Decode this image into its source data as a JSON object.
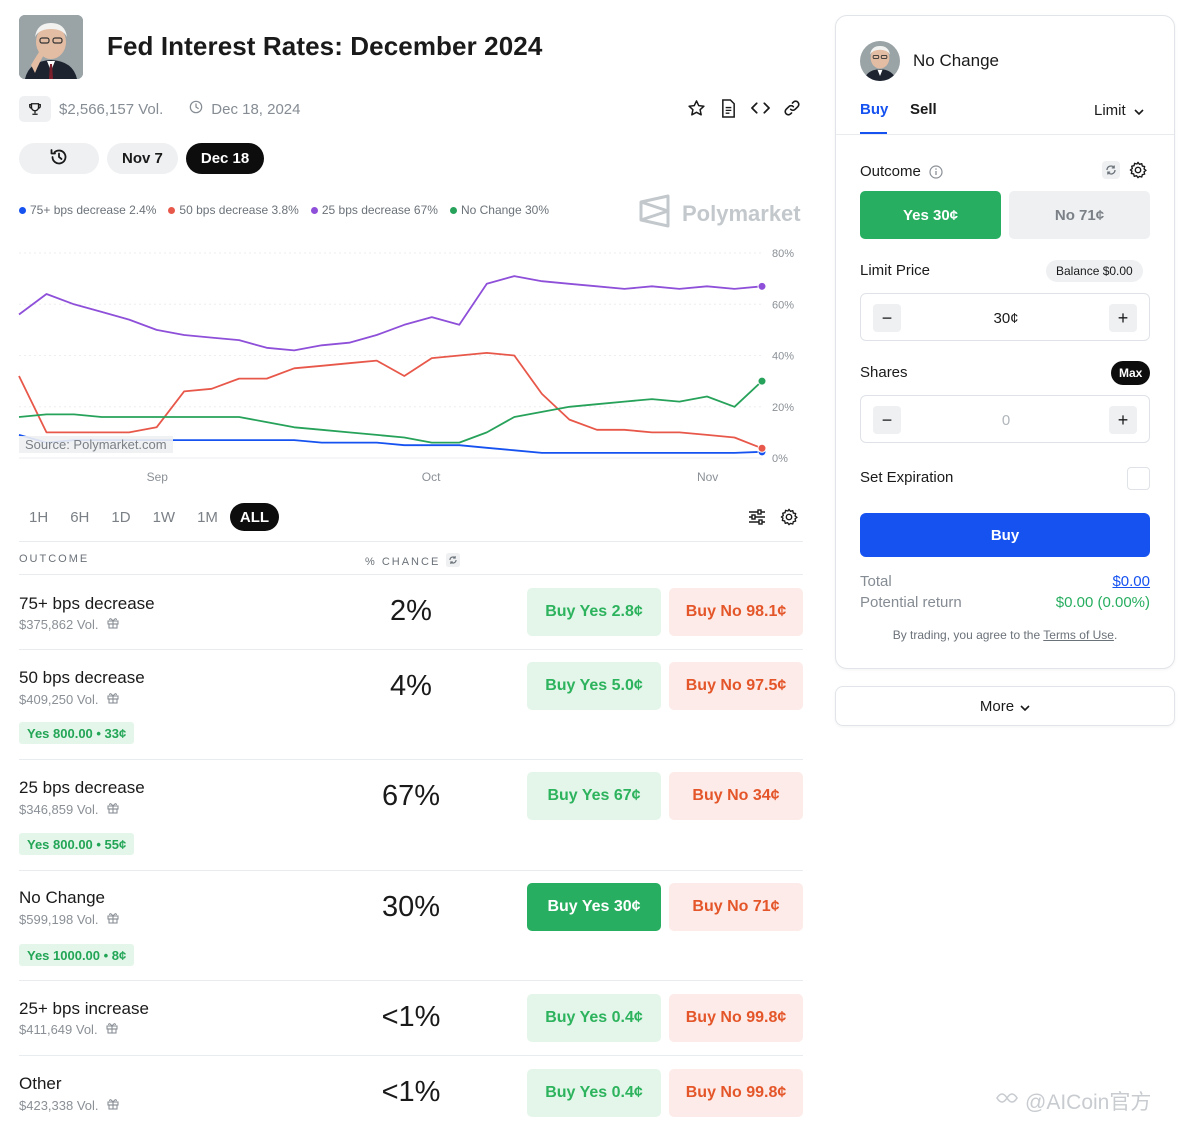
{
  "market": {
    "title": "Fed Interest Rates: December 2024",
    "volume": "$2,566,157 Vol.",
    "end_date": "Dec 18, 2024"
  },
  "icons": [
    "trophy-icon",
    "clock-icon",
    "star-icon",
    "document-icon",
    "code-icon",
    "link-icon",
    "history-icon",
    "sliders-icon",
    "gear-icon",
    "refresh-icon",
    "info-icon",
    "gift-icon",
    "chevron-down-icon",
    "polymarket-logo-icon"
  ],
  "date_pills": [
    "Nov 7",
    "Dec 18"
  ],
  "brand": "Polymarket",
  "chart_source": "Source: Polymarket.com",
  "time_ranges": [
    "1H",
    "6H",
    "1D",
    "1W",
    "1M",
    "ALL"
  ],
  "colors": {
    "blue": "#1652f0",
    "red": "#e8584a",
    "purple": "#8e4fd9",
    "green": "#27a25a"
  },
  "chart_data": {
    "type": "line",
    "title": "",
    "xlabel": "",
    "ylabel": "",
    "x_tick_labels": [
      "Sep",
      "Oct",
      "Nov"
    ],
    "y_tick_labels": [
      "80%",
      "60%",
      "40%",
      "20%",
      "0%"
    ],
    "ylim": [
      0,
      80
    ],
    "x": [
      "Aug 18",
      "Aug 21",
      "Aug 24",
      "Aug 27",
      "Aug 30",
      "Sep 2",
      "Sep 5",
      "Sep 8",
      "Sep 11",
      "Sep 14",
      "Sep 17",
      "Sep 20",
      "Sep 23",
      "Sep 26",
      "Sep 29",
      "Oct 2",
      "Oct 5",
      "Oct 8",
      "Oct 11",
      "Oct 14",
      "Oct 17",
      "Oct 20",
      "Oct 23",
      "Oct 26",
      "Oct 29",
      "Nov 1",
      "Nov 4",
      "Nov 7"
    ],
    "series": [
      {
        "name": "75+ bps decrease",
        "legend": "75+ bps decrease 2.4%",
        "color": "#1652f0",
        "values": [
          9,
          6,
          7,
          7,
          7,
          7,
          7,
          7,
          7,
          7,
          7,
          6,
          6,
          6,
          5,
          5,
          5,
          4,
          3,
          2,
          2,
          2,
          2,
          2,
          2,
          2,
          2,
          2.4
        ]
      },
      {
        "name": "50 bps decrease",
        "legend": "50 bps decrease 3.8%",
        "color": "#e8584a",
        "values": [
          32,
          10,
          10,
          10,
          10,
          12,
          26,
          27,
          31,
          31,
          35,
          36,
          37,
          38,
          32,
          39,
          40,
          41,
          40,
          25,
          15,
          11,
          11,
          10,
          10,
          9,
          8,
          3.8
        ]
      },
      {
        "name": "25 bps decrease",
        "legend": "25 bps decrease 67%",
        "color": "#8e4fd9",
        "values": [
          56,
          64,
          60,
          57,
          54,
          50,
          48,
          47,
          46,
          43,
          42,
          44,
          45,
          48,
          52,
          55,
          52,
          68,
          71,
          69,
          68,
          67,
          66,
          67,
          66,
          67,
          66,
          67
        ]
      },
      {
        "name": "No Change",
        "legend": "No Change 30%",
        "color": "#27a25a",
        "values": [
          16,
          17,
          17,
          16,
          16,
          16,
          16,
          16,
          16,
          14,
          12,
          11,
          10,
          9,
          8,
          6,
          6,
          10,
          16,
          18,
          20,
          21,
          22,
          23,
          22,
          24,
          20,
          30
        ]
      }
    ]
  },
  "table": {
    "header_outcome": "OUTCOME",
    "header_chance": "% CHANCE",
    "rows": [
      {
        "name": "75+ bps decrease",
        "volume": "$375,862 Vol.",
        "chance": "2%",
        "buy_yes": "Buy Yes 2.8¢",
        "buy_no": "Buy No 98.1¢"
      },
      {
        "name": "50 bps decrease",
        "volume": "$409,250 Vol.",
        "position": "Yes 800.00 • 33¢",
        "chance": "4%",
        "buy_yes": "Buy Yes 5.0¢",
        "buy_no": "Buy No 97.5¢"
      },
      {
        "name": "25 bps decrease",
        "volume": "$346,859 Vol.",
        "position": "Yes 800.00 • 55¢",
        "chance": "67%",
        "buy_yes": "Buy Yes 67¢",
        "buy_no": "Buy No 34¢"
      },
      {
        "name": "No Change",
        "volume": "$599,198 Vol.",
        "position": "Yes 1000.00 • 8¢",
        "chance": "30%",
        "buy_yes": "Buy Yes 30¢",
        "buy_no": "Buy No 71¢"
      },
      {
        "name": "25+ bps increase",
        "volume": "$411,649 Vol.",
        "chance": "<1%",
        "buy_yes": "Buy Yes 0.4¢",
        "buy_no": "Buy No 99.8¢"
      },
      {
        "name": "Other",
        "volume": "$423,338 Vol.",
        "chance": "<1%",
        "buy_yes": "Buy Yes 0.4¢",
        "buy_no": "Buy No 99.8¢"
      }
    ]
  },
  "panel": {
    "title": "No Change",
    "tab_buy": "Buy",
    "tab_sell": "Sell",
    "order_type": "Limit",
    "outcome_label": "Outcome",
    "yes_label": "Yes 30¢",
    "no_label": "No 71¢",
    "limit_price_label": "Limit Price",
    "balance": "Balance $0.00",
    "limit_price_value": "30¢",
    "shares_label": "Shares",
    "max_label": "Max",
    "shares_placeholder": "0",
    "expiration_label": "Set Expiration",
    "buy_button": "Buy",
    "total_label": "Total",
    "total_value": "$0.00",
    "return_label": "Potential return",
    "return_value": "$0.00 (0.00%)",
    "terms_prefix": "By trading, you agree to the",
    "terms_link": "Terms of Use",
    "terms_suffix": ".",
    "minus": "−",
    "plus": "+"
  },
  "more_button": "More",
  "corner_watermark": "@AICoin官方"
}
